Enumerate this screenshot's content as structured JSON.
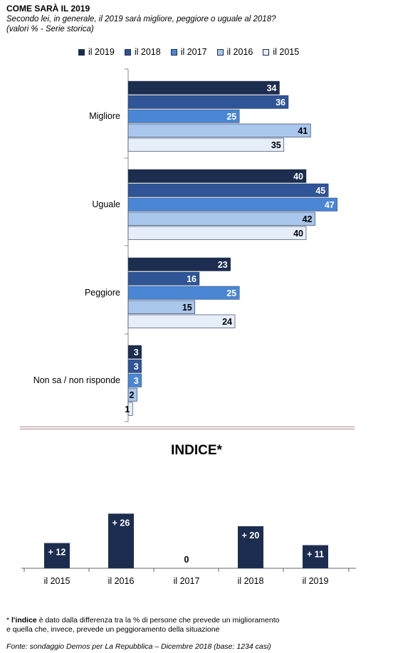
{
  "header": {
    "title": "COME SARÀ IL 2019",
    "subtitle_line1": "Secondo lei, in generale, il 2019 sarà migliore, peggiore o uguale al 2018?",
    "subtitle_line2": "(valori % - Serie  storica)"
  },
  "colors": {
    "il 2019": "#1c2d4f",
    "il 2018": "#2f5597",
    "il 2017": "#4a86d4",
    "il 2016": "#a9c6ec",
    "il 2015": "#e6eef9",
    "indice_bar": "#1c2d4f"
  },
  "chart_data": [
    {
      "type": "bar",
      "orientation": "horizontal",
      "categories": [
        "Migliore",
        "Uguale",
        "Peggiore",
        "Non sa / non risponde"
      ],
      "series": [
        {
          "name": "il 2019",
          "values": [
            34,
            40,
            23,
            3
          ]
        },
        {
          "name": "il 2018",
          "values": [
            36,
            45,
            16,
            3
          ]
        },
        {
          "name": "il 2017",
          "values": [
            25,
            47,
            25,
            3
          ]
        },
        {
          "name": "il 2016",
          "values": [
            41,
            42,
            15,
            2
          ]
        },
        {
          "name": "il 2015",
          "values": [
            35,
            40,
            24,
            1
          ]
        }
      ],
      "xlim": [
        0,
        50
      ],
      "legend": "top",
      "grid": false
    },
    {
      "type": "bar",
      "title": "INDICE*",
      "categories": [
        "il 2015",
        "il 2016",
        "il 2017",
        "il 2018",
        "il 2019"
      ],
      "values": [
        12,
        26,
        0,
        20,
        11
      ],
      "labels": [
        "+ 12",
        "+ 26",
        "0",
        "+ 20",
        "+ 11"
      ],
      "grid": false
    }
  ],
  "footnote": {
    "bold": "l'indice",
    "line1_prefix": "* ",
    "line1_rest": " è dato dalla differenza tra la % di persone che prevede un miglioramento",
    "line2": "e quella che, invece, prevede un peggioramento della situazione"
  },
  "source": "Fonte: sondaggio Demos per La Repubblica – Dicembre 2018 (base: 1234 casi)"
}
